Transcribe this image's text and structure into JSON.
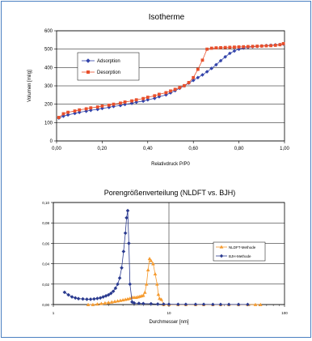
{
  "chart_data": [
    {
      "type": "scatter",
      "title": "Isotherme",
      "xlabel": "Relativdruck P/P0",
      "ylabel": "Volumen [ml/g]",
      "xlim": [
        0,
        1
      ],
      "ylim": [
        0,
        600
      ],
      "x_ticks": [
        "0,00",
        "0,20",
        "0,40",
        "0,60",
        "0,80",
        "1,00"
      ],
      "y_ticks": [
        "0",
        "100",
        "200",
        "300",
        "400",
        "500",
        "600"
      ],
      "grid": "horizontal",
      "legend_position": "left",
      "series": [
        {
          "name": "Adsorption",
          "color": "#3344aa",
          "marker": "diamond",
          "points": [
            [
              0.01,
              125
            ],
            [
              0.03,
              135
            ],
            [
              0.05,
              142
            ],
            [
              0.08,
              150
            ],
            [
              0.1,
              156
            ],
            [
              0.13,
              162
            ],
            [
              0.15,
              167
            ],
            [
              0.18,
              172
            ],
            [
              0.2,
              177
            ],
            [
              0.23,
              183
            ],
            [
              0.25,
              188
            ],
            [
              0.28,
              193
            ],
            [
              0.3,
              199
            ],
            [
              0.33,
              205
            ],
            [
              0.35,
              211
            ],
            [
              0.38,
              217
            ],
            [
              0.4,
              224
            ],
            [
              0.43,
              232
            ],
            [
              0.45,
              241
            ],
            [
              0.48,
              251
            ],
            [
              0.5,
              262
            ],
            [
              0.52,
              274
            ],
            [
              0.54,
              287
            ],
            [
              0.56,
              300
            ],
            [
              0.58,
              315
            ],
            [
              0.6,
              330
            ],
            [
              0.62,
              345
            ],
            [
              0.64,
              360
            ],
            [
              0.66,
              377
            ],
            [
              0.68,
              395
            ],
            [
              0.7,
              415
            ],
            [
              0.72,
              437
            ],
            [
              0.74,
              458
            ],
            [
              0.76,
              477
            ],
            [
              0.78,
              490
            ],
            [
              0.8,
              500
            ],
            [
              0.82,
              506
            ],
            [
              0.84,
              510
            ],
            [
              0.86,
              513
            ],
            [
              0.88,
              515
            ],
            [
              0.9,
              517
            ],
            [
              0.92,
              519
            ],
            [
              0.94,
              521
            ],
            [
              0.96,
              523
            ],
            [
              0.98,
              525
            ],
            [
              0.995,
              528
            ]
          ]
        },
        {
          "name": "Desorption",
          "color": "#e8502c",
          "marker": "square",
          "points": [
            [
              0.01,
              128
            ],
            [
              0.03,
              148
            ],
            [
              0.05,
              156
            ],
            [
              0.08,
              163
            ],
            [
              0.1,
              169
            ],
            [
              0.13,
              175
            ],
            [
              0.15,
              180
            ],
            [
              0.18,
              185
            ],
            [
              0.2,
              190
            ],
            [
              0.23,
              195
            ],
            [
              0.25,
              200
            ],
            [
              0.28,
              206
            ],
            [
              0.3,
              212
            ],
            [
              0.33,
              218
            ],
            [
              0.35,
              224
            ],
            [
              0.38,
              231
            ],
            [
              0.4,
              238
            ],
            [
              0.43,
              246
            ],
            [
              0.45,
              254
            ],
            [
              0.48,
              263
            ],
            [
              0.5,
              272
            ],
            [
              0.52,
              281
            ],
            [
              0.54,
              291
            ],
            [
              0.56,
              301
            ],
            [
              0.58,
              318
            ],
            [
              0.6,
              345
            ],
            [
              0.62,
              390
            ],
            [
              0.64,
              440
            ],
            [
              0.66,
              500
            ],
            [
              0.68,
              505
            ],
            [
              0.7,
              507
            ],
            [
              0.72,
              508
            ],
            [
              0.74,
              509
            ],
            [
              0.76,
              510
            ],
            [
              0.78,
              511
            ],
            [
              0.8,
              512
            ],
            [
              0.82,
              513
            ],
            [
              0.84,
              514
            ],
            [
              0.86,
              515
            ],
            [
              0.88,
              516
            ],
            [
              0.9,
              517
            ],
            [
              0.92,
              518
            ],
            [
              0.94,
              519
            ],
            [
              0.96,
              521
            ],
            [
              0.98,
              524
            ],
            [
              0.995,
              530
            ]
          ]
        }
      ]
    },
    {
      "type": "scatter",
      "title": "Porengrößenverteilung (NLDFT vs. BJH)",
      "xlabel": "Durchmesser [nm]",
      "ylabel": "",
      "x_scale": "log",
      "xlim": [
        1,
        100
      ],
      "ylim": [
        0,
        0.1
      ],
      "x_ticks": [
        "1",
        "10",
        "100"
      ],
      "y_ticks": [
        "0,00",
        "0,02",
        "0,04",
        "0,06",
        "0,08",
        "0,10"
      ],
      "grid": "horizontal and vertical",
      "legend_position": "right",
      "series": [
        {
          "name": "NLDFT-Methode",
          "color": "#f59a2e",
          "marker": "triangle",
          "points": [
            [
              2.0,
              0.0
            ],
            [
              2.2,
              0.0
            ],
            [
              2.4,
              0.0005
            ],
            [
              2.6,
              0.001
            ],
            [
              2.8,
              0.0015
            ],
            [
              3.0,
              0.002
            ],
            [
              3.2,
              0.0025
            ],
            [
              3.4,
              0.003
            ],
            [
              3.6,
              0.0035
            ],
            [
              3.8,
              0.004
            ],
            [
              4.0,
              0.0045
            ],
            [
              4.2,
              0.005
            ],
            [
              4.4,
              0.0055
            ],
            [
              4.6,
              0.006
            ],
            [
              4.8,
              0.007
            ],
            [
              5.0,
              0.007
            ],
            [
              5.2,
              0.007
            ],
            [
              5.4,
              0.0075
            ],
            [
              5.6,
              0.008
            ],
            [
              5.8,
              0.0085
            ],
            [
              6.0,
              0.009
            ],
            [
              6.2,
              0.012
            ],
            [
              6.4,
              0.02
            ],
            [
              6.6,
              0.034
            ],
            [
              6.8,
              0.045
            ],
            [
              7.0,
              0.043
            ],
            [
              7.3,
              0.04
            ],
            [
              7.6,
              0.03
            ],
            [
              7.9,
              0.02
            ],
            [
              8.1,
              0.01
            ],
            [
              8.3,
              0.006
            ],
            [
              8.6,
              0.005
            ],
            [
              9.0,
              0.0
            ],
            [
              10,
              0.0
            ],
            [
              12,
              0.0
            ],
            [
              14,
              0.0
            ],
            [
              17,
              0.0
            ],
            [
              20,
              0.0
            ],
            [
              24,
              0.0
            ],
            [
              28,
              0.0
            ],
            [
              33,
              0.0
            ],
            [
              40,
              0.0
            ],
            [
              48,
              0.0
            ],
            [
              56,
              0.0
            ],
            [
              62,
              0.0
            ]
          ]
        },
        {
          "name": "BJH-Methode",
          "color": "#2a3a8f",
          "marker": "diamond",
          "points": [
            [
              1.25,
              0.012
            ],
            [
              1.35,
              0.0095
            ],
            [
              1.45,
              0.0075
            ],
            [
              1.55,
              0.0065
            ],
            [
              1.65,
              0.0058
            ],
            [
              1.8,
              0.0055
            ],
            [
              1.95,
              0.0052
            ],
            [
              2.1,
              0.0052
            ],
            [
              2.25,
              0.0055
            ],
            [
              2.4,
              0.006
            ],
            [
              2.55,
              0.0065
            ],
            [
              2.7,
              0.0075
            ],
            [
              2.85,
              0.0085
            ],
            [
              3.0,
              0.0095
            ],
            [
              3.15,
              0.011
            ],
            [
              3.3,
              0.013
            ],
            [
              3.45,
              0.016
            ],
            [
              3.6,
              0.02
            ],
            [
              3.75,
              0.026
            ],
            [
              3.9,
              0.036
            ],
            [
              4.05,
              0.052
            ],
            [
              4.2,
              0.07
            ],
            [
              4.3,
              0.085
            ],
            [
              4.4,
              0.092
            ],
            [
              4.5,
              0.06
            ],
            [
              4.6,
              0.02
            ],
            [
              4.8,
              0.0025
            ],
            [
              5.0,
              0.0015
            ],
            [
              5.5,
              0.0012
            ],
            [
              6.0,
              0.001
            ],
            [
              7.0,
              0.0008
            ],
            [
              8.0,
              0.0005
            ],
            [
              9.0,
              0.0004
            ],
            [
              10,
              0.0003
            ],
            [
              12,
              0.0002
            ],
            [
              14,
              0.0002
            ],
            [
              17,
              0.0002
            ],
            [
              20,
              0.0002
            ],
            [
              24,
              0.0001
            ],
            [
              28,
              0.0001
            ],
            [
              33,
              0.0001
            ],
            [
              40,
              0.0001
            ],
            [
              48,
              0.0001
            ]
          ]
        }
      ]
    }
  ]
}
